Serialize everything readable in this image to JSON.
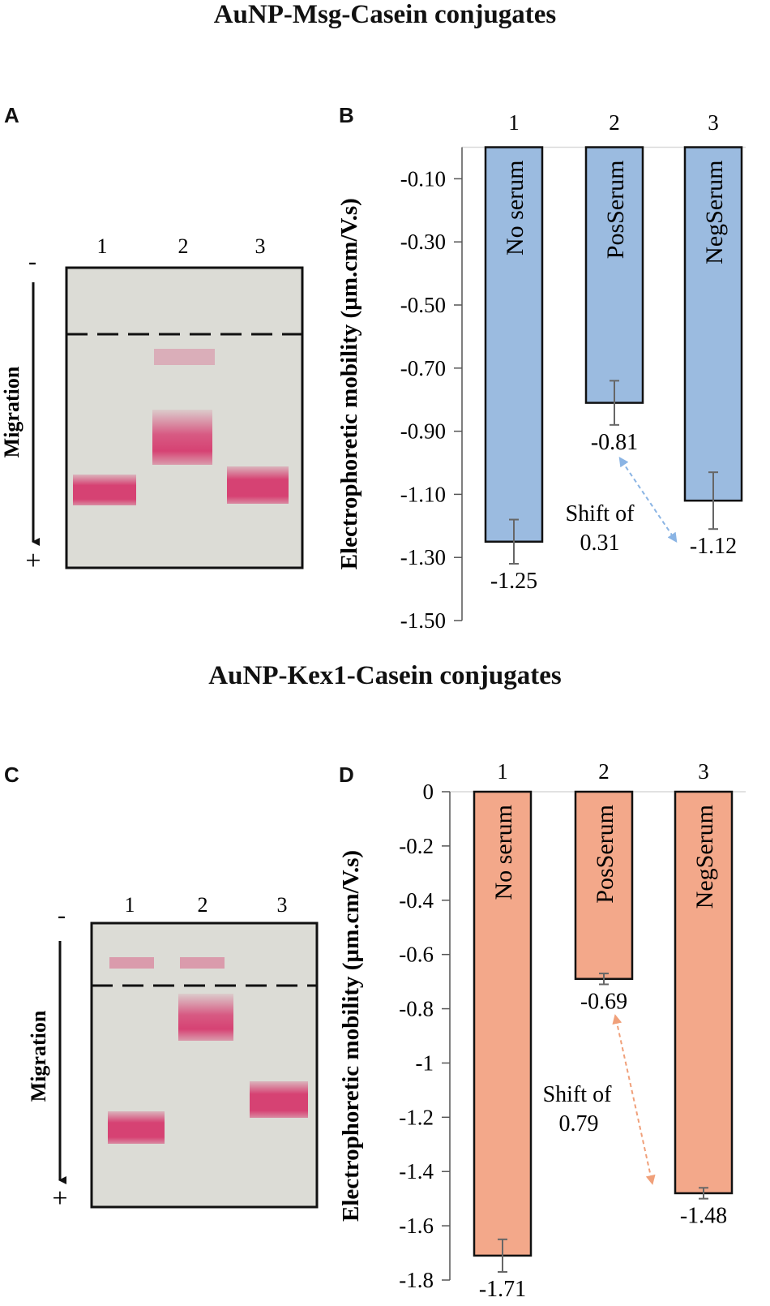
{
  "section_titles": {
    "top": "AuNP-Msg-Casein conjugates",
    "bottom": "AuNP-Kex1-Casein conjugates"
  },
  "panel_letters": [
    "A",
    "B",
    "C",
    "D"
  ],
  "gels": [
    {
      "lane_labels": [
        "1",
        "2",
        "3"
      ],
      "minus_label": "-",
      "plus_label": "+",
      "migration_label": "Migration"
    },
    {
      "lane_labels": [
        "1",
        "2",
        "3"
      ],
      "minus_label": "-",
      "plus_label": "+",
      "migration_label": "Migration"
    }
  ],
  "colors": {
    "chart_b_bar": "#9bbbe0",
    "chart_d_bar": "#f3a88a",
    "chart_b_arrow": "#8ab4e4",
    "chart_d_arrow": "#f0a07a",
    "gel_band": "#d63a6e",
    "gel_bg": "#dcdcd6"
  },
  "chart_data": [
    {
      "type": "bar",
      "panel": "B",
      "ylabel": "Electrophoretic mobility (µm.cm/V.s)",
      "categories": [
        "1",
        "2",
        "3"
      ],
      "bar_labels": [
        "No serum",
        "PosSerum",
        "NegSerum"
      ],
      "values": [
        -1.25,
        -0.81,
        -1.12
      ],
      "value_labels": [
        "-1.25",
        "-0.81",
        "-1.12"
      ],
      "errors": [
        0.07,
        0.07,
        0.09
      ],
      "ylim": [
        -1.5,
        0.0
      ],
      "yticks": [
        -0.1,
        -0.3,
        -0.5,
        -0.7,
        -0.9,
        -1.1,
        -1.3,
        -1.5
      ],
      "ytick_labels": [
        "-0.10",
        "-0.30",
        "-0.50",
        "-0.70",
        "-0.90",
        "-1.10",
        "-1.30",
        "-1.50"
      ],
      "annotation": {
        "line1": "Shift of",
        "line2": "0.31"
      }
    },
    {
      "type": "bar",
      "panel": "D",
      "ylabel": "Electrophoretic mobility (µm.cm/V.s)",
      "categories": [
        "1",
        "2",
        "3"
      ],
      "bar_labels": [
        "No serum",
        "PosSerum",
        "NegSerum"
      ],
      "values": [
        -1.71,
        -0.69,
        -1.48
      ],
      "value_labels": [
        "-1.71",
        "-0.69",
        "-1.48"
      ],
      "errors": [
        0.06,
        0.02,
        0.02
      ],
      "ylim": [
        -1.8,
        0.0
      ],
      "yticks": [
        0,
        -0.2,
        -0.4,
        -0.6,
        -0.8,
        -1,
        -1.2,
        -1.4,
        -1.6,
        -1.8
      ],
      "ytick_labels": [
        "0",
        "-0.2",
        "-0.4",
        "-0.6",
        "-0.8",
        "-1",
        "-1.2",
        "-1.4",
        "-1.6",
        "-1.8"
      ],
      "annotation": {
        "line1": "Shift of",
        "line2": "0.79"
      }
    }
  ]
}
